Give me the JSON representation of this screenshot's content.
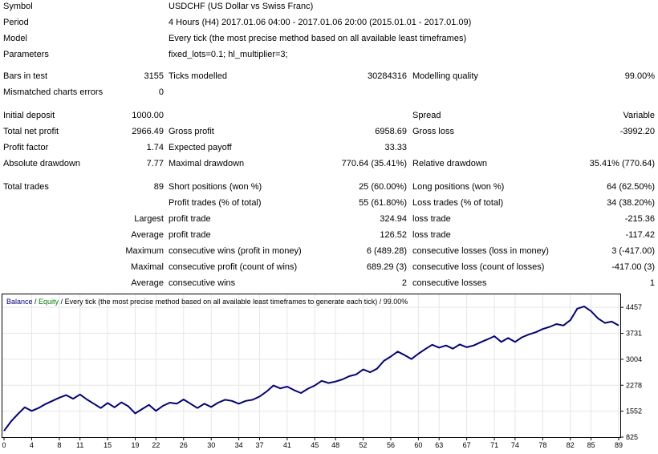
{
  "report": {
    "symbol": {
      "label": "Symbol",
      "value": "USDCHF (US Dollar vs Swiss Franc)"
    },
    "period": {
      "label": "Period",
      "value": "4 Hours (H4) 2017.01.06 04:00 - 2017.01.06 20:00 (2015.01.01 - 2017.01.09)"
    },
    "model": {
      "label": "Model",
      "value": "Every tick (the most precise method based on all available least timeframes)"
    },
    "parameters": {
      "label": "Parameters",
      "value": "fixed_lots=0.1; hl_multiplier=3;"
    },
    "bars_in_test": {
      "label": "Bars in test",
      "value": "3155"
    },
    "ticks_modelled": {
      "label": "Ticks modelled",
      "value": "30284316"
    },
    "modelling_quality": {
      "label": "Modelling quality",
      "value": "99.00%"
    },
    "mismatched_errors": {
      "label": "Mismatched charts errors",
      "value": "0"
    },
    "initial_deposit": {
      "label": "Initial deposit",
      "value": "1000.00"
    },
    "spread": {
      "label": "Spread",
      "value": "Variable"
    },
    "total_net_profit": {
      "label": "Total net profit",
      "value": "2966.49"
    },
    "gross_profit": {
      "label": "Gross profit",
      "value": "6958.69"
    },
    "gross_loss": {
      "label": "Gross loss",
      "value": "-3992.20"
    },
    "profit_factor": {
      "label": "Profit factor",
      "value": "1.74"
    },
    "expected_payoff": {
      "label": "Expected payoff",
      "value": "33.33"
    },
    "absolute_drawdown": {
      "label": "Absolute drawdown",
      "value": "7.77"
    },
    "maximal_drawdown": {
      "label": "Maximal drawdown",
      "value": "770.64 (35.41%)"
    },
    "relative_drawdown": {
      "label": "Relative drawdown",
      "value": "35.41% (770.64)"
    },
    "total_trades": {
      "label": "Total trades",
      "value": "89"
    },
    "short_positions": {
      "label": "Short positions (won %)",
      "value": "25 (60.00%)"
    },
    "long_positions": {
      "label": "Long positions (won %)",
      "value": "64 (62.50%)"
    },
    "profit_trades": {
      "label": "Profit trades (% of total)",
      "value": "55 (61.80%)"
    },
    "loss_trades": {
      "label": "Loss trades (% of total)",
      "value": "34 (38.20%)"
    },
    "largest": {
      "prefix": "Largest",
      "profit_label": "profit trade",
      "profit_value": "324.94",
      "loss_label": "loss trade",
      "loss_value": "-215.36"
    },
    "average": {
      "prefix": "Average",
      "profit_label": "profit trade",
      "profit_value": "126.52",
      "loss_label": "loss trade",
      "loss_value": "-117.42"
    },
    "maximum": {
      "prefix": "Maximum",
      "wins_label": "consecutive wins (profit in money)",
      "wins_value": "6 (489.28)",
      "losses_label": "consecutive losses (loss in money)",
      "losses_value": "3 (-417.00)"
    },
    "maximal": {
      "prefix": "Maximal",
      "profit_label": "consecutive profit (count of wins)",
      "profit_value": "689.29 (3)",
      "loss_label": "consecutive loss (count of losses)",
      "loss_value": "-417.00 (3)"
    },
    "average_consec": {
      "prefix": "Average",
      "wins_label": "consecutive wins",
      "wins_value": "2",
      "losses_label": "consecutive losses",
      "losses_value": "1"
    }
  },
  "chart_data": {
    "type": "line",
    "legend": {
      "balance": "Balance",
      "sep1": " / ",
      "equity": "Equity",
      "rest": " / Every tick (the most precise method based on all available least timeframes to generate each tick) / 99.00%"
    },
    "colors": {
      "balance": "#00008b",
      "equity": "#008000",
      "grid": "#e6e6e6",
      "axis": "#000000"
    },
    "x_ticks": [
      0,
      4,
      8,
      11,
      15,
      19,
      22,
      26,
      30,
      34,
      37,
      41,
      45,
      48,
      52,
      56,
      60,
      63,
      67,
      71,
      74,
      78,
      82,
      85,
      89
    ],
    "y_ticks": [
      825,
      1552,
      2278,
      3004,
      3731,
      4457
    ],
    "xlim": [
      0,
      89
    ],
    "ylim": [
      825,
      4820
    ],
    "series": [
      {
        "name": "Balance",
        "x": [
          0,
          1,
          2,
          3,
          4,
          5,
          6,
          7,
          8,
          9,
          10,
          11,
          12,
          13,
          14,
          15,
          16,
          17,
          18,
          19,
          20,
          21,
          22,
          23,
          24,
          25,
          26,
          27,
          28,
          29,
          30,
          31,
          32,
          33,
          34,
          35,
          36,
          37,
          38,
          39,
          40,
          41,
          42,
          43,
          44,
          45,
          46,
          47,
          48,
          49,
          50,
          51,
          52,
          53,
          54,
          55,
          56,
          57,
          58,
          59,
          60,
          61,
          62,
          63,
          64,
          65,
          66,
          67,
          68,
          69,
          70,
          71,
          72,
          73,
          74,
          75,
          76,
          77,
          78,
          79,
          80,
          81,
          82,
          83,
          84,
          85,
          86,
          87,
          88,
          89
        ],
        "values": [
          1000,
          1260,
          1470,
          1660,
          1560,
          1640,
          1750,
          1840,
          1930,
          2000,
          1900,
          2020,
          1880,
          1760,
          1640,
          1780,
          1660,
          1800,
          1690,
          1490,
          1610,
          1730,
          1560,
          1700,
          1790,
          1760,
          1880,
          1760,
          1640,
          1760,
          1670,
          1790,
          1870,
          1840,
          1760,
          1840,
          1870,
          1960,
          2100,
          2270,
          2190,
          2240,
          2140,
          2060,
          2180,
          2270,
          2400,
          2340,
          2380,
          2440,
          2530,
          2580,
          2720,
          2640,
          2740,
          2960,
          3080,
          3220,
          3120,
          3010,
          3160,
          3290,
          3410,
          3330,
          3390,
          3300,
          3420,
          3340,
          3390,
          3480,
          3560,
          3650,
          3490,
          3600,
          3490,
          3620,
          3700,
          3760,
          3850,
          3910,
          3990,
          3950,
          4100,
          4420,
          4480,
          4350,
          4150,
          4020,
          4060,
          3950
        ]
      }
    ]
  }
}
